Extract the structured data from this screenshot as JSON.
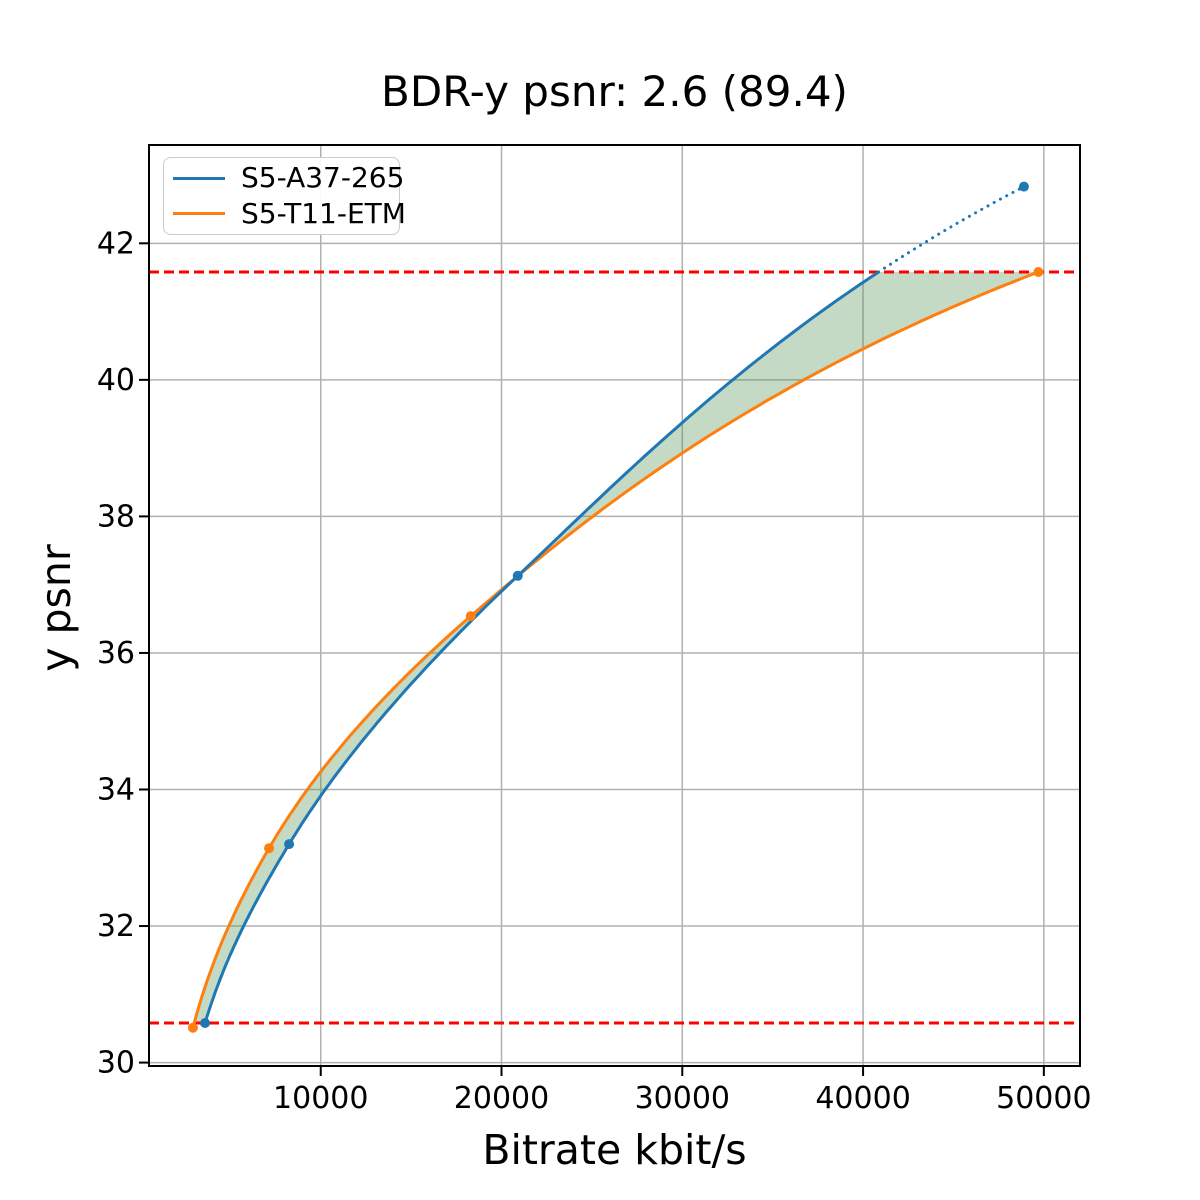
{
  "figure": {
    "background": "#ffffff",
    "title": "BDR-y psnr: 2.6 (89.4)"
  },
  "chart_data": {
    "type": "line",
    "title": "BDR-y psnr: 2.6 (89.4)",
    "xlabel": "Bitrate kbit/s",
    "ylabel": "y psnr",
    "xlim": [
      500,
      52000
    ],
    "ylim": [
      29.95,
      43.44
    ],
    "x_ticks": [
      10000,
      20000,
      30000,
      40000,
      50000
    ],
    "y_ticks": [
      30,
      32,
      34,
      36,
      38,
      40,
      42
    ],
    "grid": true,
    "grid_color": "#b0b0b0",
    "legend_position": "upper left",
    "series": [
      {
        "name": "S5-A37-265",
        "color": "#1f77b4",
        "marker": "circle",
        "x": [
          3600,
          8250,
          20900,
          48900
        ],
        "y": [
          30.58,
          33.2,
          37.13,
          42.83
        ],
        "note": "segment above upper threshold drawn dotted"
      },
      {
        "name": "S5-T11-ETM",
        "color": "#ff7f0e",
        "marker": "circle",
        "x": [
          2930,
          7140,
          18300,
          49700
        ],
        "y": [
          30.51,
          33.14,
          36.54,
          41.58
        ]
      }
    ],
    "threshold_lines": {
      "style": "dashed",
      "color": "#ff0000",
      "y_values": [
        30.58,
        41.58
      ]
    },
    "shaded_region": {
      "color": "#559655",
      "opacity": 0.35,
      "description": "area between the two rate-distortion curves inside the threshold band"
    }
  }
}
